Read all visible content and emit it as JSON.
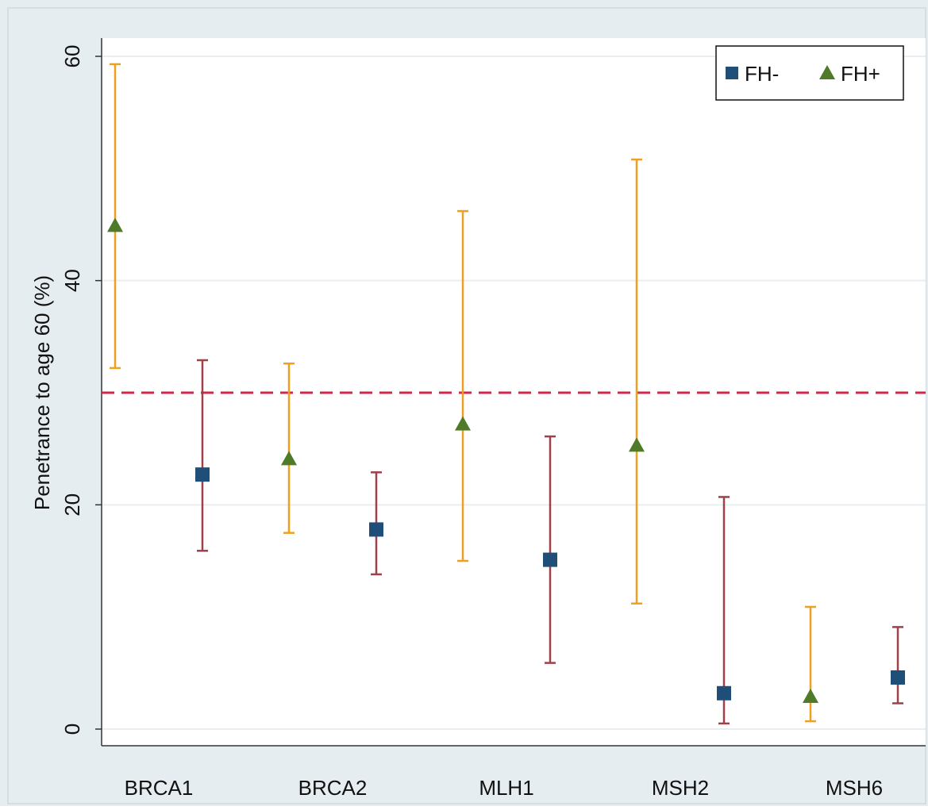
{
  "chart_data": {
    "type": "scatter",
    "title": "",
    "xlabel": "",
    "ylabel": "Penetrance to age 60 (%)",
    "categories": [
      "BRCA1",
      "BRCA2",
      "MLH1",
      "MSH2",
      "MSH6"
    ],
    "ylim": [
      0,
      60
    ],
    "yticks": [
      "0",
      "20",
      "40",
      "60"
    ],
    "grid": true,
    "legend_position": "top-right",
    "reference_line": {
      "y": 30,
      "style": "dashed",
      "color": "#d0284a"
    },
    "series": [
      {
        "name": "FH-",
        "marker": "square",
        "marker_color": "#1f4e79",
        "errorbar_color": "#a0404a",
        "values": [
          22.7,
          17.8,
          15.1,
          3.2,
          4.6
        ],
        "lower": [
          15.9,
          13.8,
          5.9,
          0.5,
          2.3
        ],
        "upper": [
          32.9,
          22.9,
          26.1,
          20.7,
          9.1
        ]
      },
      {
        "name": "FH+",
        "marker": "triangle",
        "marker_color": "#4f7a28",
        "errorbar_color": "#f0a020",
        "values": [
          44.9,
          24.1,
          27.2,
          25.3,
          2.9
        ],
        "lower": [
          32.2,
          17.5,
          15.0,
          11.2,
          0.7
        ],
        "upper": [
          59.3,
          32.6,
          46.2,
          50.8,
          10.9
        ]
      }
    ]
  }
}
